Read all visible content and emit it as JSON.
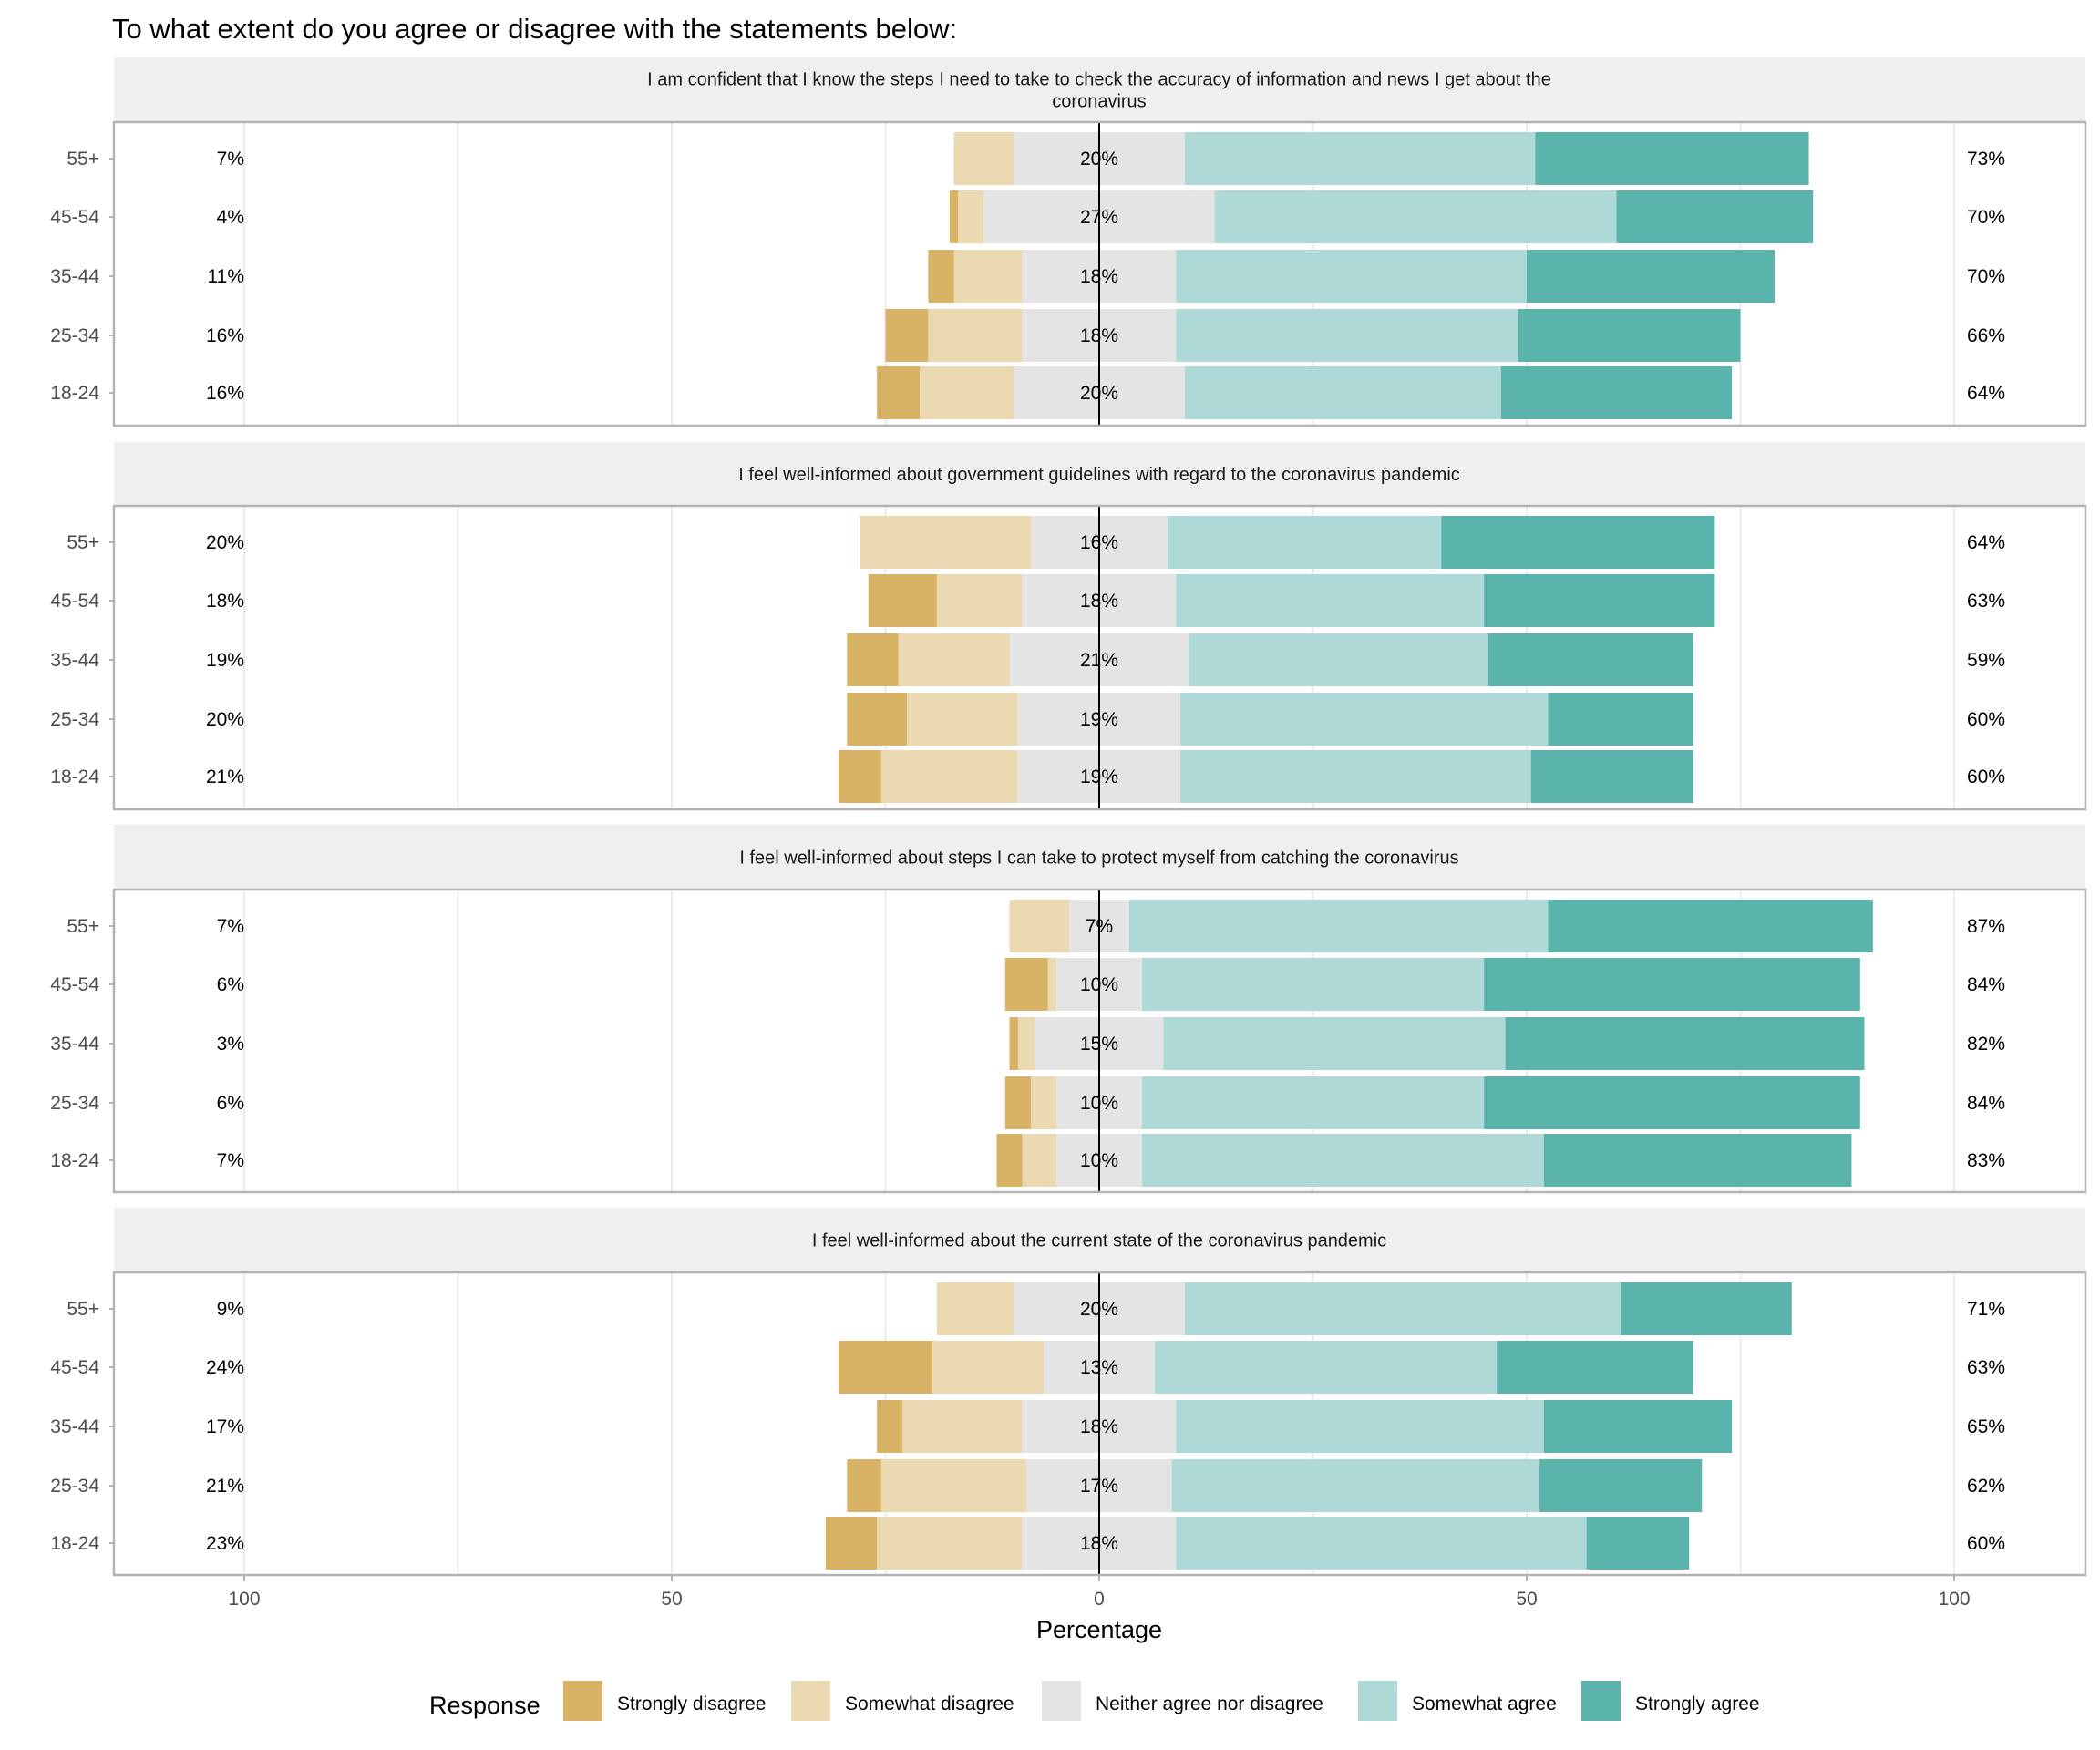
{
  "chart_data": {
    "type": "bar",
    "subtype": "diverging-stacked-horizontal",
    "title": "To what extent do you agree or disagree with the statements below:",
    "xlabel": "Percentage",
    "ylabel": "",
    "xlim": [
      -115,
      115
    ],
    "x_ticks": [
      -100,
      -50,
      0,
      50,
      100
    ],
    "x_tick_labels": [
      "100",
      "50",
      "0",
      "50",
      "100"
    ],
    "grid": true,
    "legend": {
      "title": "Response",
      "position": "bottom",
      "entries": [
        "Strongly disagree",
        "Somewhat disagree",
        "Neither agree nor disagree",
        "Somewhat agree",
        "Strongly agree"
      ]
    },
    "colors": {
      "Strongly disagree": "#D8B365",
      "Somewhat disagree": "#EBD9B2",
      "Neither agree nor disagree": "#E4E4E4",
      "Somewhat agree": "#AED9D6",
      "Strongly agree": "#5AB4AC"
    },
    "categories": [
      "55+",
      "45-54",
      "35-44",
      "25-34",
      "18-24"
    ],
    "panels": [
      {
        "statement_lines": [
          "I am confident that I know the steps I need to take to check the accuracy of information and news I get about the",
          "coronavirus"
        ],
        "rows": [
          {
            "age": "55+",
            "strongly_disagree": 0,
            "somewhat_disagree": 7,
            "neither": 20,
            "somewhat_agree": 41,
            "strongly_agree": 32,
            "disagree_label": "7%",
            "neither_label": "20%",
            "agree_label": "73%"
          },
          {
            "age": "45-54",
            "strongly_disagree": 1,
            "somewhat_disagree": 3,
            "neither": 27,
            "somewhat_agree": 47,
            "strongly_agree": 23,
            "disagree_label": "4%",
            "neither_label": "27%",
            "agree_label": "70%"
          },
          {
            "age": "35-44",
            "strongly_disagree": 3,
            "somewhat_disagree": 8,
            "neither": 18,
            "somewhat_agree": 41,
            "strongly_agree": 29,
            "disagree_label": "11%",
            "neither_label": "18%",
            "agree_label": "70%"
          },
          {
            "age": "25-34",
            "strongly_disagree": 5,
            "somewhat_disagree": 11,
            "neither": 18,
            "somewhat_agree": 40,
            "strongly_agree": 26,
            "disagree_label": "16%",
            "neither_label": "18%",
            "agree_label": "66%"
          },
          {
            "age": "18-24",
            "strongly_disagree": 5,
            "somewhat_disagree": 11,
            "neither": 20,
            "somewhat_agree": 37,
            "strongly_agree": 27,
            "disagree_label": "16%",
            "neither_label": "20%",
            "agree_label": "64%"
          }
        ]
      },
      {
        "statement_lines": [
          "I feel well-informed about government guidelines with regard to the coronavirus pandemic"
        ],
        "rows": [
          {
            "age": "55+",
            "strongly_disagree": 0,
            "somewhat_disagree": 20,
            "neither": 16,
            "somewhat_agree": 32,
            "strongly_agree": 32,
            "disagree_label": "20%",
            "neither_label": "16%",
            "agree_label": "64%"
          },
          {
            "age": "45-54",
            "strongly_disagree": 8,
            "somewhat_disagree": 10,
            "neither": 18,
            "somewhat_agree": 36,
            "strongly_agree": 27,
            "disagree_label": "18%",
            "neither_label": "18%",
            "agree_label": "63%"
          },
          {
            "age": "35-44",
            "strongly_disagree": 6,
            "somewhat_disagree": 13,
            "neither": 21,
            "somewhat_agree": 35,
            "strongly_agree": 24,
            "disagree_label": "19%",
            "neither_label": "21%",
            "agree_label": "59%"
          },
          {
            "age": "25-34",
            "strongly_disagree": 7,
            "somewhat_disagree": 13,
            "neither": 19,
            "somewhat_agree": 43,
            "strongly_agree": 17,
            "disagree_label": "20%",
            "neither_label": "19%",
            "agree_label": "60%"
          },
          {
            "age": "18-24",
            "strongly_disagree": 5,
            "somewhat_disagree": 16,
            "neither": 19,
            "somewhat_agree": 41,
            "strongly_agree": 19,
            "disagree_label": "21%",
            "neither_label": "19%",
            "agree_label": "60%"
          }
        ]
      },
      {
        "statement_lines": [
          "I feel well-informed about steps I can take to protect myself from catching the coronavirus"
        ],
        "rows": [
          {
            "age": "55+",
            "strongly_disagree": 0,
            "somewhat_disagree": 7,
            "neither": 7,
            "somewhat_agree": 49,
            "strongly_agree": 38,
            "disagree_label": "7%",
            "neither_label": "7%",
            "agree_label": "87%"
          },
          {
            "age": "45-54",
            "strongly_disagree": 5,
            "somewhat_disagree": 1,
            "neither": 10,
            "somewhat_agree": 40,
            "strongly_agree": 44,
            "disagree_label": "6%",
            "neither_label": "10%",
            "agree_label": "84%"
          },
          {
            "age": "35-44",
            "strongly_disagree": 1,
            "somewhat_disagree": 2,
            "neither": 15,
            "somewhat_agree": 40,
            "strongly_agree": 42,
            "disagree_label": "3%",
            "neither_label": "15%",
            "agree_label": "82%"
          },
          {
            "age": "25-34",
            "strongly_disagree": 3,
            "somewhat_disagree": 3,
            "neither": 10,
            "somewhat_agree": 40,
            "strongly_agree": 44,
            "disagree_label": "6%",
            "neither_label": "10%",
            "agree_label": "84%"
          },
          {
            "age": "18-24",
            "strongly_disagree": 3,
            "somewhat_disagree": 4,
            "neither": 10,
            "somewhat_agree": 47,
            "strongly_agree": 36,
            "disagree_label": "7%",
            "neither_label": "10%",
            "agree_label": "83%"
          }
        ]
      },
      {
        "statement_lines": [
          "I feel well-informed about the current state of the coronavirus pandemic"
        ],
        "rows": [
          {
            "age": "55+",
            "strongly_disagree": 0,
            "somewhat_disagree": 9,
            "neither": 20,
            "somewhat_agree": 51,
            "strongly_agree": 20,
            "disagree_label": "9%",
            "neither_label": "20%",
            "agree_label": "71%"
          },
          {
            "age": "45-54",
            "strongly_disagree": 11,
            "somewhat_disagree": 13,
            "neither": 13,
            "somewhat_agree": 40,
            "strongly_agree": 23,
            "disagree_label": "24%",
            "neither_label": "13%",
            "agree_label": "63%"
          },
          {
            "age": "35-44",
            "strongly_disagree": 3,
            "somewhat_disagree": 14,
            "neither": 18,
            "somewhat_agree": 43,
            "strongly_agree": 22,
            "disagree_label": "17%",
            "neither_label": "18%",
            "agree_label": "65%"
          },
          {
            "age": "25-34",
            "strongly_disagree": 4,
            "somewhat_disagree": 17,
            "neither": 17,
            "somewhat_agree": 43,
            "strongly_agree": 19,
            "disagree_label": "21%",
            "neither_label": "17%",
            "agree_label": "62%"
          },
          {
            "age": "18-24",
            "strongly_disagree": 6,
            "somewhat_disagree": 17,
            "neither": 18,
            "somewhat_agree": 48,
            "strongly_agree": 12,
            "disagree_label": "23%",
            "neither_label": "18%",
            "agree_label": "60%"
          }
        ]
      }
    ]
  }
}
